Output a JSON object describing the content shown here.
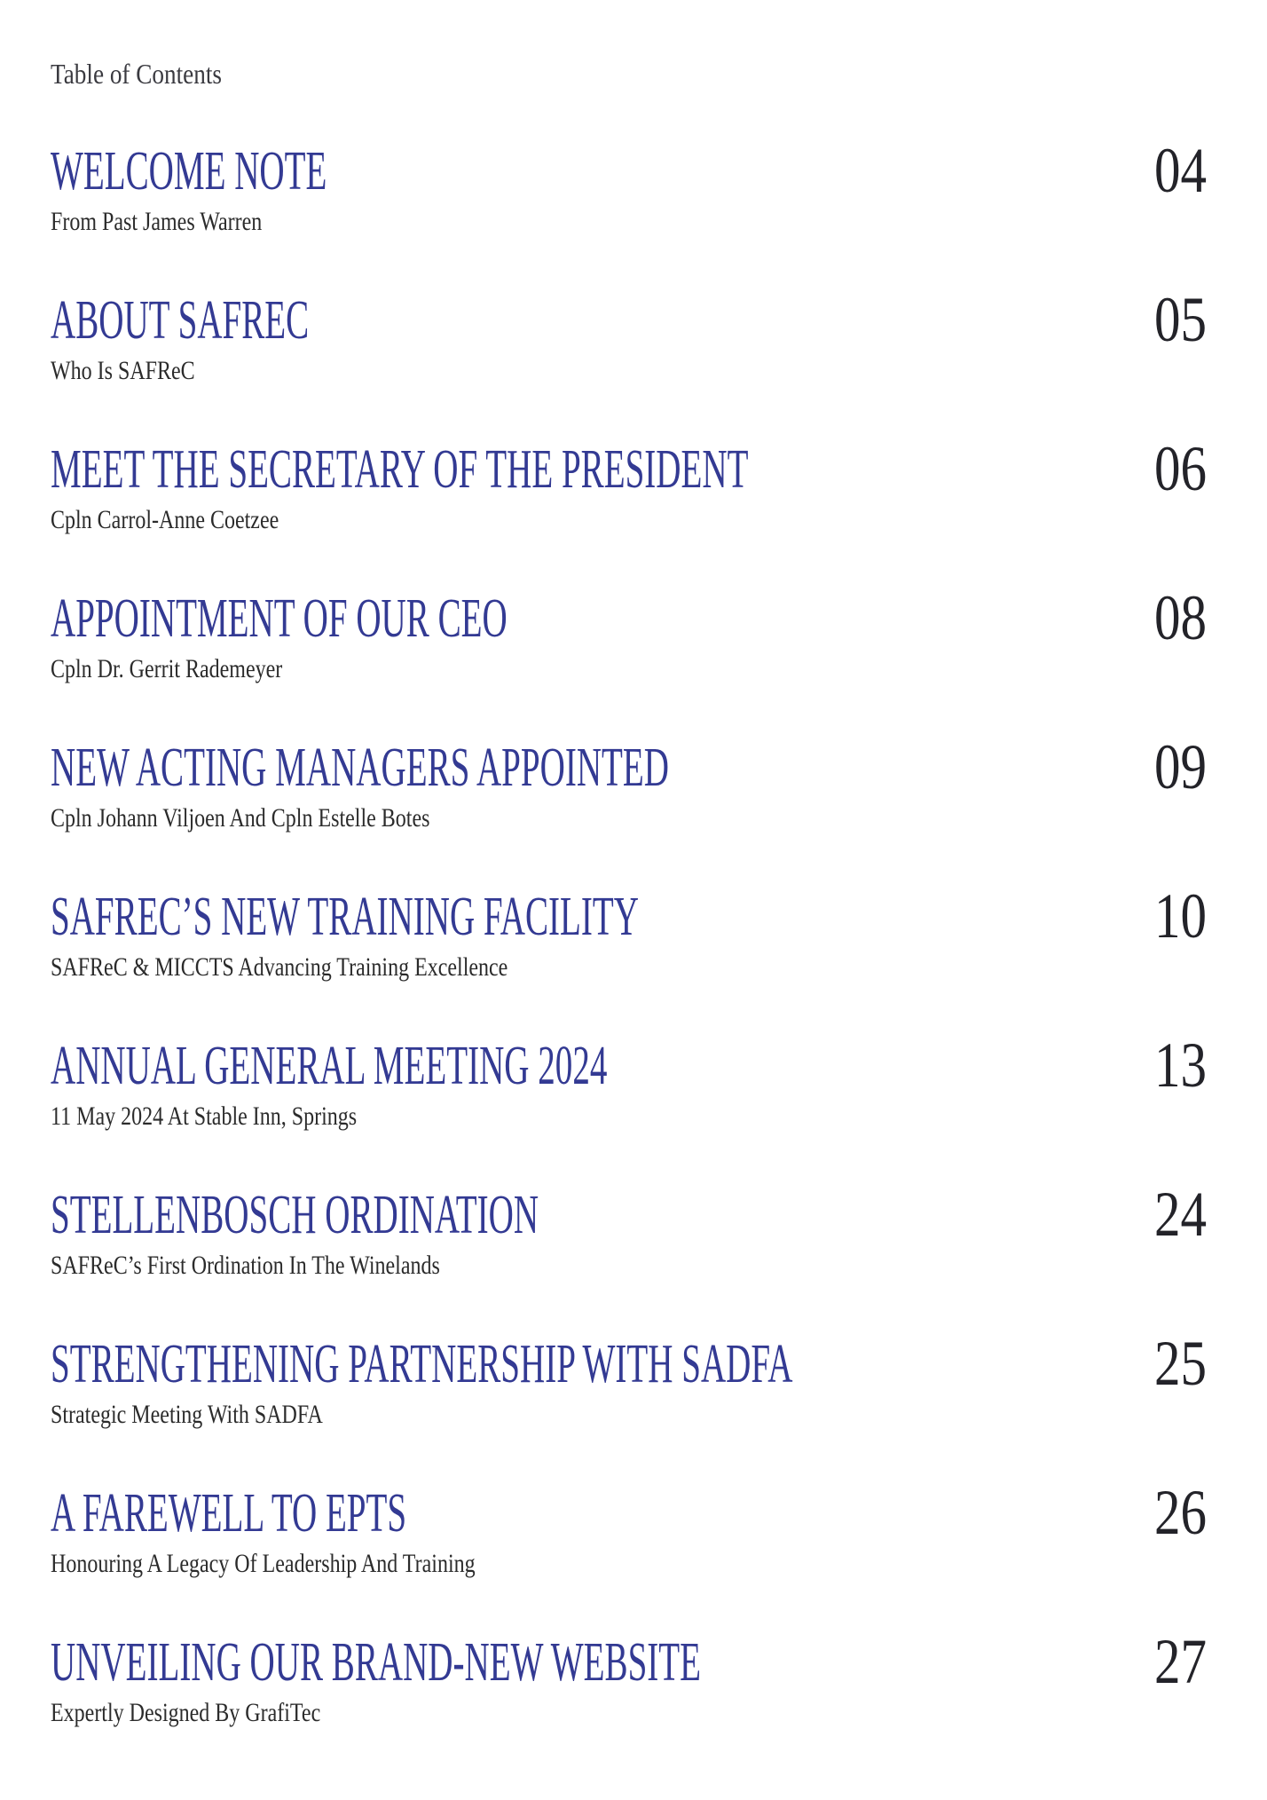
{
  "page": {
    "header": "Table of Contents",
    "accent_color": "#333a93",
    "subtitle_color": "#2b2b2b",
    "page_number_color": "#232329",
    "background_color": "#ffffff"
  },
  "toc": {
    "entries": [
      {
        "title": "WELCOME NOTE",
        "subtitle": "From Past James Warren",
        "page": "04"
      },
      {
        "title": "ABOUT SAFREC",
        "subtitle": "Who Is SAFReC",
        "page": "05"
      },
      {
        "title": "MEET THE SECRETARY OF THE PRESIDENT",
        "subtitle": "Cpln Carrol-Anne Coetzee",
        "page": "06"
      },
      {
        "title": "APPOINTMENT OF OUR CEO",
        "subtitle": "Cpln Dr. Gerrit Rademeyer",
        "page": "08"
      },
      {
        "title": "NEW ACTING MANAGERS APPOINTED",
        "subtitle": "Cpln Johann Viljoen And Cpln Estelle Botes",
        "page": "09"
      },
      {
        "title": "SAFREC’S NEW TRAINING FACILITY",
        "subtitle": "SAFReC & MICCTS Advancing Training Excellence",
        "page": "10"
      },
      {
        "title": "ANNUAL GENERAL MEETING 2024",
        "subtitle": "11 May 2024 At Stable Inn, Springs",
        "page": "13"
      },
      {
        "title": "STELLENBOSCH ORDINATION",
        "subtitle": "SAFReC’s First Ordination In The Winelands",
        "page": "24"
      },
      {
        "title": "STRENGTHENING PARTNERSHIP WITH SADFA",
        "subtitle": "Strategic Meeting With SADFA",
        "page": "25"
      },
      {
        "title": "A FAREWELL TO EPTS",
        "subtitle": "Honouring A Legacy Of Leadership And Training",
        "page": "26"
      },
      {
        "title": "UNVEILING OUR BRAND-NEW WEBSITE",
        "subtitle": "Expertly Designed By GrafiTec",
        "page": "27"
      }
    ]
  }
}
